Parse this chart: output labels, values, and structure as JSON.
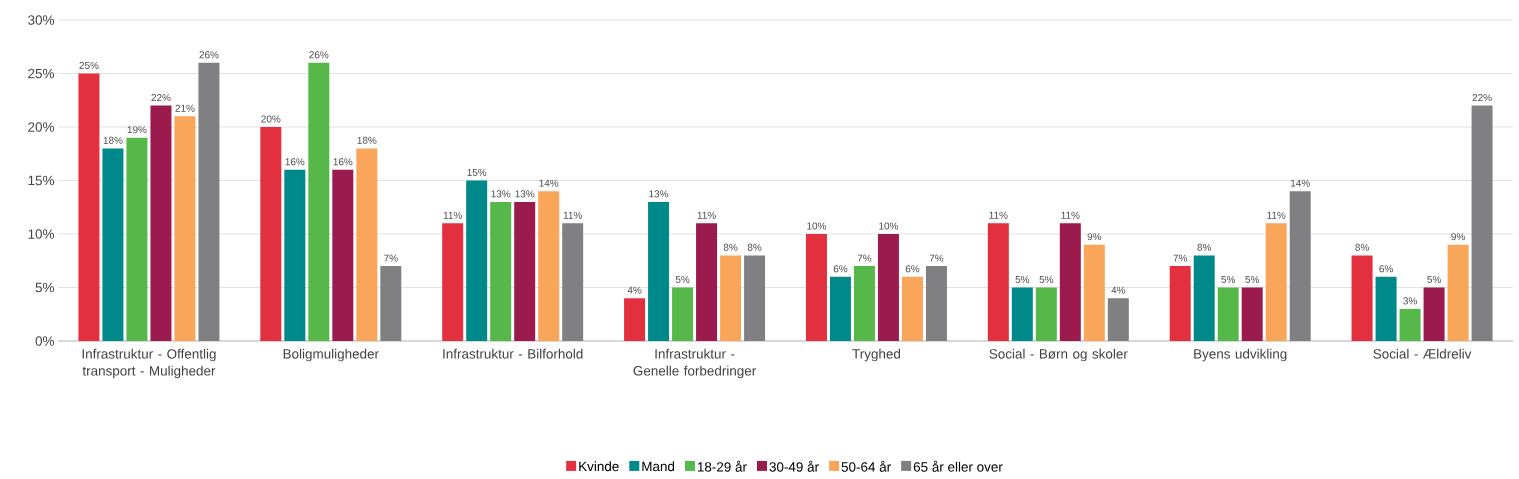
{
  "chart_data": {
    "type": "bar",
    "categories": [
      "Infrastruktur - Offentlig transport - Muligheder",
      "Boligmuligheder",
      "Infrastruktur - Bilforhold",
      "Infrastruktur - Genelle forbedringer",
      "Tryghed",
      "Social - Børn og skoler",
      "Byens udvikling",
      "Social - Ældreliv"
    ],
    "series": [
      {
        "name": "Kvinde",
        "color": "#e3303f",
        "values": [
          25,
          20,
          11,
          4,
          10,
          11,
          7,
          8
        ],
        "value_labels": [
          "25%",
          "20%",
          "11%",
          "4%",
          "10%",
          "11%",
          "7%",
          "8%"
        ]
      },
      {
        "name": "Mand",
        "color": "#00898a",
        "values": [
          18,
          16,
          15,
          13,
          6,
          5,
          8,
          6
        ],
        "value_labels": [
          "18%",
          "16%",
          "15%",
          "13%",
          "6%",
          "5%",
          "8%",
          "6%"
        ]
      },
      {
        "name": "18-29 år",
        "color": "#56b849",
        "values": [
          19,
          26,
          13,
          5,
          7,
          5,
          5,
          3
        ],
        "value_labels": [
          "19%",
          "26%",
          "13%",
          "5%",
          "7%",
          "5%",
          "5%",
          "3%"
        ]
      },
      {
        "name": "30-49 år",
        "color": "#9b1b4e",
        "values": [
          22,
          16,
          13,
          11,
          10,
          11,
          5,
          5
        ],
        "value_labels": [
          "22%",
          "16%",
          "13%",
          "11%",
          "10%",
          "11%",
          "5%",
          "5%"
        ]
      },
      {
        "name": "50-64 år",
        "color": "#f9a55a",
        "values": [
          21,
          18,
          14,
          8,
          6,
          9,
          11,
          9
        ],
        "value_labels": [
          "21%",
          "18%",
          "14%",
          "8%",
          "6%",
          "9%",
          "11%",
          "9%"
        ]
      },
      {
        "name": "65 år eller over",
        "color": "#808083",
        "values": [
          26,
          7,
          11,
          8,
          7,
          4,
          14,
          22
        ],
        "value_labels": [
          "26%",
          "7%",
          "11%",
          "8%",
          "7%",
          "4%",
          "14%",
          "22%"
        ]
      }
    ],
    "ylim": [
      0,
      30
    ],
    "yticks": [
      {
        "value": 0,
        "label": "0%"
      },
      {
        "value": 5,
        "label": "5%"
      },
      {
        "value": 10,
        "label": "10%"
      },
      {
        "value": 15,
        "label": "15%"
      },
      {
        "value": 20,
        "label": "20%"
      },
      {
        "value": 25,
        "label": "25%"
      },
      {
        "value": 30,
        "label": "30%"
      }
    ],
    "grid": "y",
    "legend": "bottom"
  }
}
